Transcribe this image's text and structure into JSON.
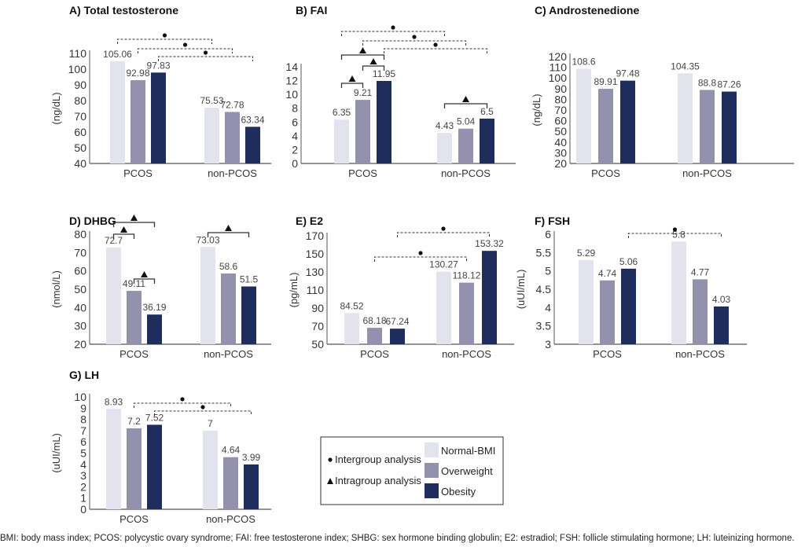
{
  "colors": {
    "Normal-BMI": "#e3e3ee",
    "Overweight": "#9391ad",
    "Obesity": "#1f2d5c",
    "bracket": "#333333"
  },
  "legend": {
    "markers": [
      {
        "symbol": "circle",
        "label": "Intergroup analysis"
      },
      {
        "symbol": "triangle",
        "label": "Intragroup analysis"
      }
    ],
    "series": [
      "Normal-BMI",
      "Overweight",
      "Obesity"
    ]
  },
  "footnote": "BMI: body mass index; PCOS: polycystic ovary syndrome; FAI: free testosterone index; SHBG: sex hormone binding globulin; E2: estradiol; FSH: follicle stimulating hormone; LH: luteinizing hormone.",
  "chart_data": [
    {
      "type": "bar",
      "title": "A) Total testosterone",
      "ylabel": "(ng/dL)",
      "categories": [
        "PCOS",
        "non-PCOS"
      ],
      "ylim": [
        40,
        110
      ],
      "yticks": [
        40,
        50,
        60,
        70,
        80,
        90,
        100,
        110
      ],
      "series": [
        {
          "name": "Normal-BMI",
          "values": [
            105.06,
            75.53
          ]
        },
        {
          "name": "Overweight",
          "values": [
            92.98,
            72.78
          ]
        },
        {
          "name": "Obesity",
          "values": [
            97.83,
            63.34
          ]
        }
      ],
      "brackets": [
        {
          "from": "PCOS/Normal-BMI",
          "to": "non-PCOS/Normal-BMI",
          "kind": "intergroup"
        },
        {
          "from": "PCOS/Overweight",
          "to": "non-PCOS/Overweight",
          "kind": "intergroup"
        },
        {
          "from": "PCOS/Obesity",
          "to": "non-PCOS/Obesity",
          "kind": "intergroup"
        }
      ]
    },
    {
      "type": "bar",
      "title": "B) FAI",
      "ylabel": "",
      "categories": [
        "PCOS",
        "non-PCOS"
      ],
      "ylim": [
        0,
        14
      ],
      "yticks": [
        0,
        2,
        4,
        6,
        8,
        10,
        12,
        14
      ],
      "series": [
        {
          "name": "Normal-BMI",
          "values": [
            6.35,
            4.43
          ]
        },
        {
          "name": "Overweight",
          "values": [
            9.21,
            5.04
          ]
        },
        {
          "name": "Obesity",
          "values": [
            11.95,
            6.5
          ]
        }
      ],
      "brackets": [
        {
          "from": "PCOS/Normal-BMI",
          "to": "non-PCOS/Normal-BMI",
          "kind": "intergroup"
        },
        {
          "from": "PCOS/Overweight",
          "to": "non-PCOS/Overweight",
          "kind": "intergroup"
        },
        {
          "from": "PCOS/Obesity",
          "to": "non-PCOS/Obesity",
          "kind": "intergroup"
        },
        {
          "from": "PCOS/Normal-BMI",
          "to": "PCOS/Obesity",
          "kind": "intragroup"
        },
        {
          "from": "PCOS/Overweight",
          "to": "PCOS/Obesity",
          "kind": "intragroup"
        },
        {
          "from": "PCOS/Normal-BMI",
          "to": "PCOS/Overweight",
          "kind": "intragroup"
        },
        {
          "from": "non-PCOS/Normal-BMI",
          "to": "non-PCOS/Obesity",
          "kind": "intragroup"
        }
      ]
    },
    {
      "type": "bar",
      "title": "C) Androstenedione",
      "ylabel": "(ng/dL)",
      "categories": [
        "PCOS",
        "non-PCOS"
      ],
      "ylim": [
        20,
        120
      ],
      "yticks": [
        20,
        30,
        40,
        50,
        60,
        70,
        80,
        90,
        100,
        110,
        120
      ],
      "series": [
        {
          "name": "Normal-BMI",
          "values": [
            108.6,
            104.35
          ]
        },
        {
          "name": "Overweight",
          "values": [
            89.91,
            88.8
          ]
        },
        {
          "name": "Obesity",
          "values": [
            97.48,
            87.26
          ]
        }
      ],
      "brackets": []
    },
    {
      "type": "bar",
      "title": "D) DHBG",
      "ylabel": "(nmol/L)",
      "categories": [
        "PCOS",
        "non-PCOS"
      ],
      "ylim": [
        20,
        80
      ],
      "yticks": [
        20,
        30,
        40,
        50,
        60,
        70,
        80
      ],
      "series": [
        {
          "name": "Normal-BMI",
          "values": [
            72.7,
            73.03
          ]
        },
        {
          "name": "Overweight",
          "values": [
            49.11,
            58.6
          ]
        },
        {
          "name": "Obesity",
          "values": [
            36.19,
            51.5
          ]
        }
      ],
      "brackets": [
        {
          "from": "PCOS/Normal-BMI",
          "to": "PCOS/Obesity",
          "kind": "intragroup"
        },
        {
          "from": "PCOS/Normal-BMI",
          "to": "PCOS/Overweight",
          "kind": "intragroup"
        },
        {
          "from": "PCOS/Overweight",
          "to": "PCOS/Obesity",
          "kind": "intragroup"
        },
        {
          "from": "non-PCOS/Normal-BMI",
          "to": "non-PCOS/Obesity",
          "kind": "intragroup"
        }
      ]
    },
    {
      "type": "bar",
      "title": "E) E2",
      "ylabel": "(pg/mL)",
      "categories": [
        "PCOS",
        "non-PCOS"
      ],
      "ylim": [
        50,
        170
      ],
      "yticks": [
        50,
        70,
        90,
        110,
        130,
        150,
        170
      ],
      "series": [
        {
          "name": "Normal-BMI",
          "values": [
            84.52,
            130.27
          ]
        },
        {
          "name": "Overweight",
          "values": [
            68.18,
            118.12
          ]
        },
        {
          "name": "Obesity",
          "values": [
            67.24,
            153.32
          ]
        }
      ],
      "brackets": [
        {
          "from": "PCOS/Obesity",
          "to": "non-PCOS/Obesity",
          "kind": "intergroup"
        },
        {
          "from": "PCOS/Overweight",
          "to": "non-PCOS/Overweight",
          "kind": "intergroup"
        }
      ]
    },
    {
      "type": "bar",
      "title": "F) FSH",
      "ylabel": "(uUI/mL)",
      "categories": [
        "PCOS",
        "non-PCOS"
      ],
      "ylim": [
        3,
        6
      ],
      "yticks": [
        3,
        3.5,
        4,
        4.5,
        5,
        5.5,
        6
      ],
      "series": [
        {
          "name": "Normal-BMI",
          "values": [
            5.29,
            5.8
          ]
        },
        {
          "name": "Overweight",
          "values": [
            4.74,
            4.77
          ]
        },
        {
          "name": "Obesity",
          "values": [
            5.06,
            4.03
          ]
        }
      ],
      "brackets": [
        {
          "from": "PCOS/Obesity",
          "to": "non-PCOS/Obesity",
          "kind": "intergroup"
        }
      ]
    },
    {
      "type": "bar",
      "title": "G) LH",
      "ylabel": "(uUI/mL)",
      "categories": [
        "PCOS",
        "non-PCOS"
      ],
      "ylim": [
        0,
        10
      ],
      "yticks": [
        0,
        1,
        2,
        3,
        4,
        5,
        6,
        7,
        8,
        9,
        10
      ],
      "series": [
        {
          "name": "Normal-BMI",
          "values": [
            8.93,
            7
          ]
        },
        {
          "name": "Overweight",
          "values": [
            7.2,
            4.64
          ]
        },
        {
          "name": "Obesity",
          "values": [
            7.52,
            3.99
          ]
        }
      ],
      "brackets": [
        {
          "from": "PCOS/Overweight",
          "to": "non-PCOS/Overweight",
          "kind": "intergroup"
        },
        {
          "from": "PCOS/Obesity",
          "to": "non-PCOS/Obesity",
          "kind": "intergroup"
        }
      ]
    }
  ]
}
